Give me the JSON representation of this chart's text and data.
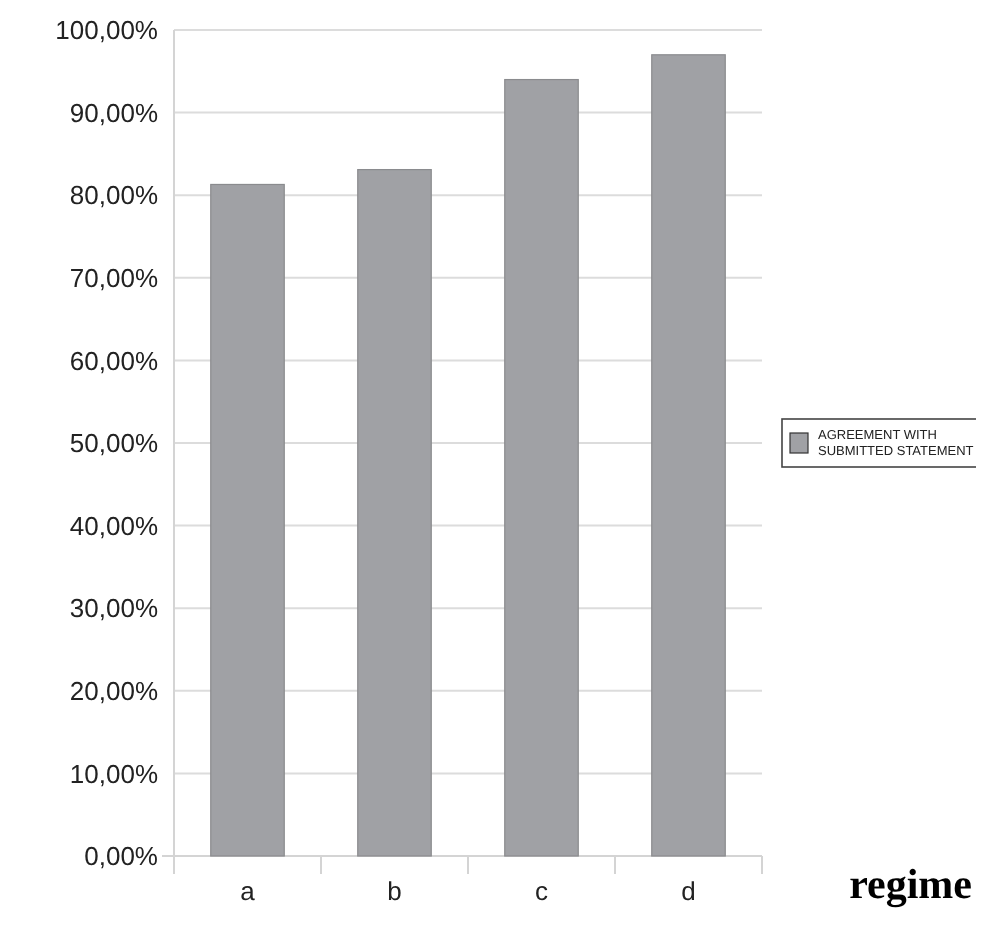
{
  "chart_data": {
    "type": "bar",
    "xlabel": "regime",
    "categories": [
      "a",
      "b",
      "c",
      "d"
    ],
    "series": [
      {
        "name": "AGREEMENT WITH SUBMITTED STATEMENT",
        "color": "#a0a1a5",
        "values": [
          81.3,
          83.1,
          94.0,
          97.0
        ]
      }
    ],
    "ylim": [
      0,
      100
    ],
    "yticks": [
      {
        "value": 0,
        "label": "0,00%"
      },
      {
        "value": 10,
        "label": "10,00%"
      },
      {
        "value": 20,
        "label": "20,00%"
      },
      {
        "value": 30,
        "label": "30,00%"
      },
      {
        "value": 40,
        "label": "40,00%"
      },
      {
        "value": 50,
        "label": "50,00%"
      },
      {
        "value": 60,
        "label": "60,00%"
      },
      {
        "value": 70,
        "label": "70,00%"
      },
      {
        "value": 80,
        "label": "80,00%"
      },
      {
        "value": 90,
        "label": "90,00%"
      },
      {
        "value": 100,
        "label": "100,00%"
      }
    ],
    "grid": "y",
    "legend": "right"
  }
}
